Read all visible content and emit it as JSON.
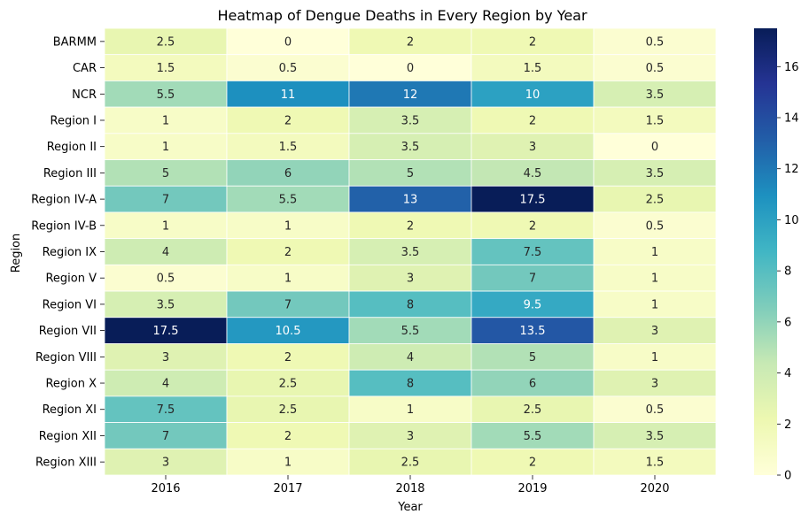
{
  "chart_data": {
    "type": "heatmap",
    "title": "Heatmap of Dengue Deaths in Every Region by Year",
    "xlabel": "Year",
    "ylabel": "Region",
    "x": [
      "2016",
      "2017",
      "2018",
      "2019",
      "2020"
    ],
    "y": [
      "BARMM",
      "CAR",
      "NCR",
      "Region I",
      "Region II",
      "Region III",
      "Region IV-A",
      "Region IV-B",
      "Region IX",
      "Region V",
      "Region VI",
      "Region VII",
      "Region VIII",
      "Region X",
      "Region XI",
      "Region XII",
      "Region XIII"
    ],
    "values": [
      [
        2.5,
        0,
        2,
        2,
        0.5
      ],
      [
        1.5,
        0.5,
        0,
        1.5,
        0.5
      ],
      [
        5.5,
        11,
        12,
        10,
        3.5
      ],
      [
        1,
        2,
        3.5,
        2,
        1.5
      ],
      [
        1,
        1.5,
        3.5,
        3,
        0
      ],
      [
        5,
        6,
        5,
        4.5,
        3.5
      ],
      [
        7,
        5.5,
        13,
        17.5,
        2.5
      ],
      [
        1,
        1,
        2,
        2,
        0.5
      ],
      [
        4,
        2,
        3.5,
        7.5,
        1
      ],
      [
        0.5,
        1,
        3,
        7,
        1
      ],
      [
        3.5,
        7,
        8,
        9.5,
        1
      ],
      [
        17.5,
        10.5,
        5.5,
        13.5,
        3
      ],
      [
        3,
        2,
        4,
        5,
        1
      ],
      [
        4,
        2.5,
        8,
        6,
        3
      ],
      [
        7.5,
        2.5,
        1,
        2.5,
        0.5
      ],
      [
        7,
        2,
        3,
        5.5,
        3.5
      ],
      [
        3,
        1,
        2.5,
        2,
        1.5
      ]
    ],
    "labels": [
      [
        "2.5",
        "0",
        "2",
        "2",
        "0.5"
      ],
      [
        "1.5",
        "0.5",
        "0",
        "1.5",
        "0.5"
      ],
      [
        "5.5",
        "11",
        "12",
        "10",
        "3.5"
      ],
      [
        "1",
        "2",
        "3.5",
        "2",
        "1.5"
      ],
      [
        "1",
        "1.5",
        "3.5",
        "3",
        "0"
      ],
      [
        "5",
        "6",
        "5",
        "4.5",
        "3.5"
      ],
      [
        "7",
        "5.5",
        "13",
        "17.5",
        "2.5"
      ],
      [
        "1",
        "1",
        "2",
        "2",
        "0.5"
      ],
      [
        "4",
        "2",
        "3.5",
        "7.5",
        "1"
      ],
      [
        "0.5",
        "1",
        "3",
        "7",
        "1"
      ],
      [
        "3.5",
        "7",
        "8",
        "9.5",
        "1"
      ],
      [
        "17.5",
        "10.5",
        "5.5",
        "13.5",
        "3"
      ],
      [
        "3",
        "2",
        "4",
        "5",
        "1"
      ],
      [
        "4",
        "2.5",
        "8",
        "6",
        "3"
      ],
      [
        "7.5",
        "2.5",
        "1",
        "2.5",
        "0.5"
      ],
      [
        "7",
        "2",
        "3",
        "5.5",
        "3.5"
      ],
      [
        "3",
        "1",
        "2.5",
        "2",
        "1.5"
      ]
    ],
    "colorbar": {
      "min": 0,
      "max": 17.5,
      "ticks": [
        0,
        2,
        4,
        6,
        8,
        10,
        12,
        14,
        16
      ],
      "tick_labels": [
        "0",
        "2",
        "4",
        "6",
        "8",
        "10",
        "12",
        "14",
        "16"
      ]
    },
    "colormap": "YlGnBu",
    "colormap_stops": [
      "#ffffd9",
      "#edf8b1",
      "#c7e9b4",
      "#7fcdbb",
      "#41b6c4",
      "#1d91c0",
      "#225ea8",
      "#253494",
      "#081d58"
    ],
    "cell_border_color": "#ffffff",
    "grid": false
  }
}
